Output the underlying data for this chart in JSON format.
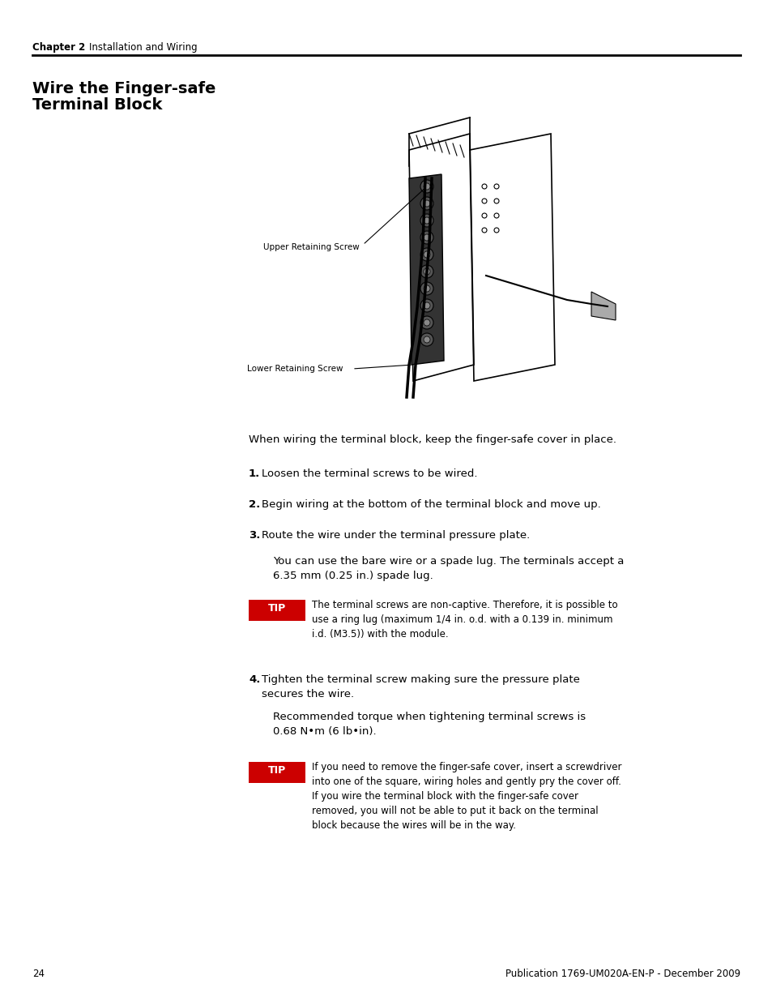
{
  "page_bg": "#ffffff",
  "header_chapter": "Chapter 2",
  "header_section": "Installation and Wiring",
  "page_number": "24",
  "footer_text": "Publication 1769-UM020A-EN-P - December 2009",
  "section_title_line1": "Wire the Finger-safe",
  "section_title_line2": "Terminal Block",
  "intro_text": "When wiring the terminal block, keep the finger-safe cover in place.",
  "steps": [
    "Loosen the terminal screws to be wired.",
    "Begin wiring at the bottom of the terminal block and move up.",
    "Route the wire under the terminal pressure plate."
  ],
  "step3_note": "You can use the bare wire or a spade lug. The terminals accept a\n6.35 mm (0.25 in.) spade lug.",
  "tip1_text": "The terminal screws are non-captive. Therefore, it is possible to\nuse a ring lug (maximum 1/4 in. o.d. with a 0.139 in. minimum\ni.d. (M3.5)) with the module.",
  "step4_text": "Tighten the terminal screw making sure the pressure plate\nsecures the wire.",
  "step4_note": "Recommended torque when tightening terminal screws is\n0.68 N•m (6 lb•in).",
  "tip2_text": "If you need to remove the finger-safe cover, insert a screwdriver\ninto one of the square, wiring holes and gently pry the cover off.\nIf you wire the terminal block with the finger-safe cover\nremoved, you will not be able to put it back on the terminal\nblock because the wires will be in the way.",
  "label_upper": "Upper Retaining Screw",
  "label_lower": "Lower Retaining Screw",
  "tip_bg": "#cc0000",
  "tip_label_color": "#ffffff"
}
